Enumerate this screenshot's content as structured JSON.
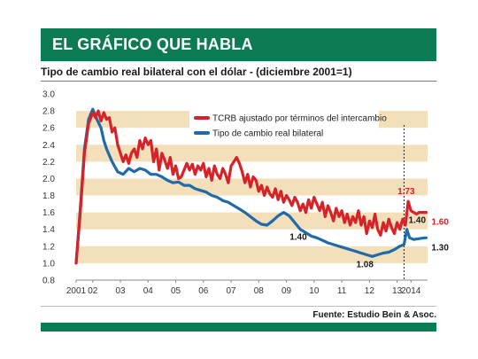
{
  "header": {
    "title": "EL GRÁFICO QUE HABLA"
  },
  "chart_data": {
    "type": "line",
    "title": "Tipo de cambio real bilateral con el dólar - (diciembre 2001=1)",
    "source": "Fuente: Estudio Bein & Asoc.",
    "ylim": [
      0.8,
      3.0
    ],
    "yticks": [
      "0.8",
      "1.0",
      "1.2",
      "1.4",
      "1.6",
      "1.8",
      "2.0",
      "2.2",
      "2.4",
      "2.6",
      "2.8",
      "3.0"
    ],
    "xlim": [
      2001.9,
      2014.6
    ],
    "xticks": [
      {
        "label": "2001",
        "x": 2001.9
      },
      {
        "label": "02",
        "x": 2002.5
      },
      {
        "label": "03",
        "x": 2003.5
      },
      {
        "label": "04",
        "x": 2004.5
      },
      {
        "label": "05",
        "x": 2005.5
      },
      {
        "label": "06",
        "x": 2006.5
      },
      {
        "label": "07",
        "x": 2007.5
      },
      {
        "label": "08",
        "x": 2008.5
      },
      {
        "label": "09",
        "x": 2009.5
      },
      {
        "label": "10",
        "x": 2010.5
      },
      {
        "label": "11",
        "x": 2011.5
      },
      {
        "label": "12",
        "x": 2012.5
      },
      {
        "label": "13",
        "x": 2013.5
      },
      {
        "label": "2014",
        "x": 2014.0
      }
    ],
    "grid": "banded",
    "legend_position": "top-right",
    "series": [
      {
        "name": "TCRB ajustado por términos del intercambio",
        "color": "#d6232a",
        "points": [
          [
            2001.9,
            1.0
          ],
          [
            2002.05,
            1.6
          ],
          [
            2002.2,
            2.3
          ],
          [
            2002.35,
            2.65
          ],
          [
            2002.5,
            2.78
          ],
          [
            2002.6,
            2.72
          ],
          [
            2002.7,
            2.8
          ],
          [
            2002.8,
            2.68
          ],
          [
            2002.9,
            2.78
          ],
          [
            2003.0,
            2.7
          ],
          [
            2003.1,
            2.72
          ],
          [
            2003.2,
            2.55
          ],
          [
            2003.3,
            2.6
          ],
          [
            2003.4,
            2.4
          ],
          [
            2003.5,
            2.3
          ],
          [
            2003.6,
            2.2
          ],
          [
            2003.7,
            2.28
          ],
          [
            2003.8,
            2.18
          ],
          [
            2003.9,
            2.3
          ],
          [
            2004.0,
            2.35
          ],
          [
            2004.1,
            2.25
          ],
          [
            2004.2,
            2.45
          ],
          [
            2004.3,
            2.35
          ],
          [
            2004.4,
            2.48
          ],
          [
            2004.5,
            2.4
          ],
          [
            2004.6,
            2.45
          ],
          [
            2004.7,
            2.2
          ],
          [
            2004.8,
            2.35
          ],
          [
            2004.9,
            2.1
          ],
          [
            2005.0,
            2.3
          ],
          [
            2005.1,
            2.22
          ],
          [
            2005.2,
            2.12
          ],
          [
            2005.3,
            2.25
          ],
          [
            2005.4,
            2.05
          ],
          [
            2005.5,
            2.15
          ],
          [
            2005.6,
            2.0
          ],
          [
            2005.7,
            2.02
          ],
          [
            2005.8,
            2.1
          ],
          [
            2005.9,
            2.18
          ],
          [
            2006.0,
            2.1
          ],
          [
            2006.1,
            2.17
          ],
          [
            2006.2,
            2.05
          ],
          [
            2006.3,
            2.15
          ],
          [
            2006.4,
            2.1
          ],
          [
            2006.5,
            2.18
          ],
          [
            2006.6,
            2.02
          ],
          [
            2006.7,
            2.12
          ],
          [
            2006.8,
            1.98
          ],
          [
            2006.9,
            2.15
          ],
          [
            2007.0,
            2.05
          ],
          [
            2007.1,
            2.0
          ],
          [
            2007.2,
            2.12
          ],
          [
            2007.3,
            2.05
          ],
          [
            2007.4,
            1.95
          ],
          [
            2007.5,
            2.15
          ],
          [
            2007.6,
            2.2
          ],
          [
            2007.7,
            2.25
          ],
          [
            2007.8,
            2.18
          ],
          [
            2007.9,
            2.08
          ],
          [
            2008.0,
            1.95
          ],
          [
            2008.1,
            2.05
          ],
          [
            2008.2,
            1.9
          ],
          [
            2008.3,
            2.02
          ],
          [
            2008.4,
            1.98
          ],
          [
            2008.5,
            1.85
          ],
          [
            2008.6,
            1.92
          ],
          [
            2008.7,
            1.8
          ],
          [
            2008.8,
            1.9
          ],
          [
            2008.9,
            1.82
          ],
          [
            2009.0,
            1.78
          ],
          [
            2009.1,
            1.88
          ],
          [
            2009.2,
            1.75
          ],
          [
            2009.3,
            1.85
          ],
          [
            2009.4,
            1.72
          ],
          [
            2009.5,
            1.8
          ],
          [
            2009.6,
            1.75
          ],
          [
            2009.7,
            1.68
          ],
          [
            2009.8,
            1.78
          ],
          [
            2009.9,
            1.72
          ],
          [
            2010.0,
            1.62
          ],
          [
            2010.1,
            1.7
          ],
          [
            2010.2,
            1.6
          ],
          [
            2010.3,
            1.75
          ],
          [
            2010.4,
            1.65
          ],
          [
            2010.5,
            1.78
          ],
          [
            2010.6,
            1.7
          ],
          [
            2010.7,
            1.62
          ],
          [
            2010.8,
            1.72
          ],
          [
            2010.9,
            1.55
          ],
          [
            2011.0,
            1.68
          ],
          [
            2011.1,
            1.6
          ],
          [
            2011.2,
            1.5
          ],
          [
            2011.3,
            1.65
          ],
          [
            2011.4,
            1.55
          ],
          [
            2011.5,
            1.62
          ],
          [
            2011.6,
            1.48
          ],
          [
            2011.7,
            1.58
          ],
          [
            2011.8,
            1.45
          ],
          [
            2011.9,
            1.55
          ],
          [
            2012.0,
            1.48
          ],
          [
            2012.1,
            1.62
          ],
          [
            2012.2,
            1.45
          ],
          [
            2012.3,
            1.55
          ],
          [
            2012.4,
            1.35
          ],
          [
            2012.5,
            1.5
          ],
          [
            2012.6,
            1.42
          ],
          [
            2012.7,
            1.58
          ],
          [
            2012.8,
            1.4
          ],
          [
            2012.9,
            1.33
          ],
          [
            2013.0,
            1.48
          ],
          [
            2013.1,
            1.38
          ],
          [
            2013.2,
            1.52
          ],
          [
            2013.3,
            1.42
          ],
          [
            2013.4,
            1.35
          ],
          [
            2013.5,
            1.48
          ],
          [
            2013.6,
            1.4
          ],
          [
            2013.7,
            1.52
          ],
          [
            2013.8,
            1.45
          ],
          [
            2013.9,
            1.73
          ],
          [
            2014.0,
            1.62
          ],
          [
            2014.1,
            1.6
          ],
          [
            2014.2,
            1.58
          ],
          [
            2014.3,
            1.6
          ],
          [
            2014.45,
            1.6
          ],
          [
            2014.55,
            1.6
          ]
        ]
      },
      {
        "name": "Tipo de cambio real bilateral",
        "color": "#1f6aa9",
        "points": [
          [
            2001.9,
            1.0
          ],
          [
            2002.05,
            1.65
          ],
          [
            2002.2,
            2.35
          ],
          [
            2002.35,
            2.7
          ],
          [
            2002.5,
            2.82
          ],
          [
            2002.65,
            2.7
          ],
          [
            2002.8,
            2.6
          ],
          [
            2002.9,
            2.45
          ],
          [
            2003.0,
            2.35
          ],
          [
            2003.2,
            2.2
          ],
          [
            2003.4,
            2.08
          ],
          [
            2003.6,
            2.05
          ],
          [
            2003.8,
            2.12
          ],
          [
            2004.0,
            2.08
          ],
          [
            2004.2,
            2.12
          ],
          [
            2004.4,
            2.1
          ],
          [
            2004.6,
            2.05
          ],
          [
            2004.8,
            2.05
          ],
          [
            2005.0,
            2.02
          ],
          [
            2005.2,
            1.98
          ],
          [
            2005.4,
            1.95
          ],
          [
            2005.6,
            1.96
          ],
          [
            2005.8,
            1.92
          ],
          [
            2006.0,
            1.92
          ],
          [
            2006.2,
            1.88
          ],
          [
            2006.4,
            1.86
          ],
          [
            2006.6,
            1.84
          ],
          [
            2006.8,
            1.8
          ],
          [
            2007.0,
            1.78
          ],
          [
            2007.2,
            1.74
          ],
          [
            2007.4,
            1.72
          ],
          [
            2007.6,
            1.68
          ],
          [
            2007.8,
            1.64
          ],
          [
            2008.0,
            1.6
          ],
          [
            2008.2,
            1.55
          ],
          [
            2008.4,
            1.5
          ],
          [
            2008.6,
            1.46
          ],
          [
            2008.8,
            1.45
          ],
          [
            2009.0,
            1.5
          ],
          [
            2009.2,
            1.56
          ],
          [
            2009.4,
            1.6
          ],
          [
            2009.6,
            1.56
          ],
          [
            2009.8,
            1.48
          ],
          [
            2010.0,
            1.4
          ],
          [
            2010.2,
            1.36
          ],
          [
            2010.4,
            1.32
          ],
          [
            2010.6,
            1.3
          ],
          [
            2010.8,
            1.27
          ],
          [
            2011.0,
            1.24
          ],
          [
            2011.2,
            1.22
          ],
          [
            2011.4,
            1.2
          ],
          [
            2011.6,
            1.18
          ],
          [
            2011.8,
            1.16
          ],
          [
            2012.0,
            1.14
          ],
          [
            2012.2,
            1.12
          ],
          [
            2012.4,
            1.1
          ],
          [
            2012.6,
            1.08
          ],
          [
            2012.8,
            1.1
          ],
          [
            2013.0,
            1.12
          ],
          [
            2013.2,
            1.13
          ],
          [
            2013.4,
            1.16
          ],
          [
            2013.6,
            1.2
          ],
          [
            2013.75,
            1.22
          ],
          [
            2013.85,
            1.4
          ],
          [
            2013.95,
            1.3
          ],
          [
            2014.1,
            1.28
          ],
          [
            2014.3,
            1.29
          ],
          [
            2014.5,
            1.3
          ],
          [
            2014.55,
            1.3
          ]
        ]
      }
    ],
    "annotations": [
      {
        "text": "1.73",
        "x": 2013.9,
        "y": 1.73,
        "series": 0
      },
      {
        "text": "1.60",
        "x": 2014.55,
        "y": 1.6,
        "series": 0
      },
      {
        "text": "1.40",
        "x": 2013.85,
        "y": 1.4,
        "series": 1
      },
      {
        "text": "1.30",
        "x": 2014.55,
        "y": 1.3,
        "series": 1
      },
      {
        "text": "1.40",
        "x": 2010.0,
        "y": 1.4,
        "series": 1
      },
      {
        "text": "1.08",
        "x": 2012.6,
        "y": 1.08,
        "series": 1
      }
    ],
    "vline_x": 2013.75
  }
}
